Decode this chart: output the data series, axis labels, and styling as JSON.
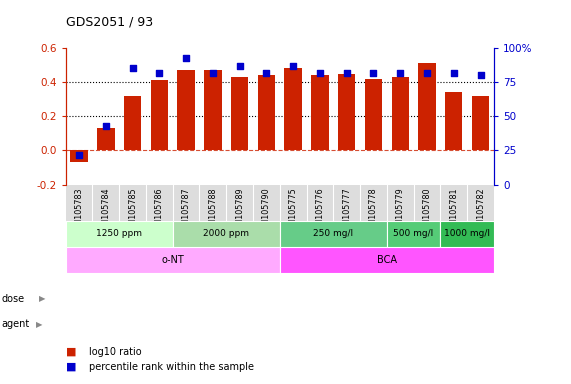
{
  "title": "GDS2051 / 93",
  "samples": [
    "GSM105783",
    "GSM105784",
    "GSM105785",
    "GSM105786",
    "GSM105787",
    "GSM105788",
    "GSM105789",
    "GSM105790",
    "GSM105775",
    "GSM105776",
    "GSM105777",
    "GSM105778",
    "GSM105779",
    "GSM105780",
    "GSM105781",
    "GSM105782"
  ],
  "log10_ratio": [
    -0.07,
    0.13,
    0.32,
    0.41,
    0.47,
    0.47,
    0.43,
    0.44,
    0.48,
    0.44,
    0.45,
    0.42,
    0.43,
    0.51,
    0.34,
    0.32
  ],
  "percentile": [
    22,
    43,
    85,
    82,
    93,
    82,
    87,
    82,
    87,
    82,
    82,
    82,
    82,
    82,
    82,
    80
  ],
  "dose_groups": [
    {
      "label": "1250 ppm",
      "start": 0,
      "end": 4
    },
    {
      "label": "2000 ppm",
      "start": 4,
      "end": 8
    },
    {
      "label": "250 mg/l",
      "start": 8,
      "end": 12
    },
    {
      "label": "500 mg/l",
      "start": 12,
      "end": 14
    },
    {
      "label": "1000 mg/l",
      "start": 14,
      "end": 16
    }
  ],
  "dose_colors": [
    "#ccffcc",
    "#aaddaa",
    "#66cc88",
    "#55cc77",
    "#33bb55"
  ],
  "agent_groups": [
    {
      "label": "o-NT",
      "start": 0,
      "end": 8
    },
    {
      "label": "BCA",
      "start": 8,
      "end": 16
    }
  ],
  "agent_colors": [
    "#ffaaff",
    "#ff55ff"
  ],
  "bar_color": "#cc2200",
  "dot_color": "#0000cc",
  "ylim": [
    -0.2,
    0.6
  ],
  "yticks": [
    -0.2,
    0.0,
    0.2,
    0.4,
    0.6
  ],
  "right_yticks": [
    0,
    25,
    50,
    75,
    100
  ],
  "hlines": [
    0.4,
    0.2
  ],
  "zeroline_y": 0.0,
  "bg_color": "#ffffff",
  "tick_label_bg": "#dddddd",
  "label_log10": "log10 ratio",
  "label_percentile": "percentile rank within the sample"
}
